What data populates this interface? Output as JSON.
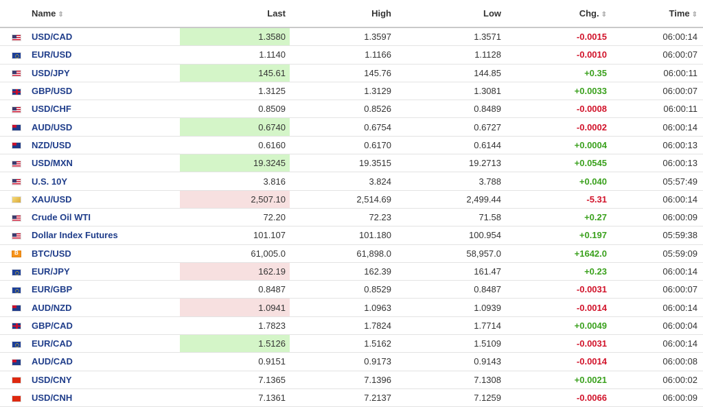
{
  "columns": {
    "name": "Name",
    "last": "Last",
    "high": "High",
    "low": "Low",
    "chg": "Chg.",
    "time": "Time"
  },
  "rows": [
    {
      "flag": "us-flag-icon",
      "flag_class": "f-us",
      "name": "USD/CAD",
      "last": "1.3580",
      "high": "1.3597",
      "low": "1.3571",
      "chg": "-0.0015",
      "time": "06:00:14",
      "highlight": "up",
      "dir": "neg"
    },
    {
      "flag": "eu-flag-icon",
      "flag_class": "f-eu",
      "name": "EUR/USD",
      "last": "1.1140",
      "high": "1.1166",
      "low": "1.1128",
      "chg": "-0.0010",
      "time": "06:00:07",
      "highlight": "",
      "dir": "neg"
    },
    {
      "flag": "us-flag-icon",
      "flag_class": "f-us",
      "name": "USD/JPY",
      "last": "145.61",
      "high": "145.76",
      "low": "144.85",
      "chg": "+0.35",
      "time": "06:00:11",
      "highlight": "up",
      "dir": "pos"
    },
    {
      "flag": "uk-flag-icon",
      "flag_class": "f-uk",
      "name": "GBP/USD",
      "last": "1.3125",
      "high": "1.3129",
      "low": "1.3081",
      "chg": "+0.0033",
      "time": "06:00:07",
      "highlight": "",
      "dir": "pos"
    },
    {
      "flag": "us-flag-icon",
      "flag_class": "f-us",
      "name": "USD/CHF",
      "last": "0.8509",
      "high": "0.8526",
      "low": "0.8489",
      "chg": "-0.0008",
      "time": "06:00:11",
      "highlight": "",
      "dir": "neg"
    },
    {
      "flag": "au-flag-icon",
      "flag_class": "f-au",
      "name": "AUD/USD",
      "last": "0.6740",
      "high": "0.6754",
      "low": "0.6727",
      "chg": "-0.0002",
      "time": "06:00:14",
      "highlight": "up",
      "dir": "neg"
    },
    {
      "flag": "nz-flag-icon",
      "flag_class": "f-nz",
      "name": "NZD/USD",
      "last": "0.6160",
      "high": "0.6170",
      "low": "0.6144",
      "chg": "+0.0004",
      "time": "06:00:13",
      "highlight": "",
      "dir": "pos"
    },
    {
      "flag": "us-flag-icon",
      "flag_class": "f-us",
      "name": "USD/MXN",
      "last": "19.3245",
      "high": "19.3515",
      "low": "19.2713",
      "chg": "+0.0545",
      "time": "06:00:13",
      "highlight": "up",
      "dir": "pos"
    },
    {
      "flag": "us-flag-icon",
      "flag_class": "f-us",
      "name": "U.S. 10Y",
      "last": "3.816",
      "high": "3.824",
      "low": "3.788",
      "chg": "+0.040",
      "time": "05:57:49",
      "highlight": "",
      "dir": "pos"
    },
    {
      "flag": "gold-icon",
      "flag_class": "f-gold",
      "name": "XAU/USD",
      "last": "2,507.10",
      "high": "2,514.69",
      "low": "2,499.44",
      "chg": "-5.31",
      "time": "06:00:14",
      "highlight": "down",
      "dir": "neg"
    },
    {
      "flag": "us-flag-icon",
      "flag_class": "f-us",
      "name": "Crude Oil WTI",
      "last": "72.20",
      "high": "72.23",
      "low": "71.58",
      "chg": "+0.27",
      "time": "06:00:09",
      "highlight": "",
      "dir": "pos"
    },
    {
      "flag": "us-flag-icon",
      "flag_class": "f-us",
      "name": "Dollar Index Futures",
      "last": "101.107",
      "high": "101.180",
      "low": "100.954",
      "chg": "+0.197",
      "time": "05:59:38",
      "highlight": "",
      "dir": "pos"
    },
    {
      "flag": "bitcoin-icon",
      "flag_class": "f-btc",
      "name": "BTC/USD",
      "last": "61,005.0",
      "high": "61,898.0",
      "low": "58,957.0",
      "chg": "+1642.0",
      "time": "05:59:09",
      "highlight": "",
      "dir": "pos"
    },
    {
      "flag": "eu-flag-icon",
      "flag_class": "f-eu",
      "name": "EUR/JPY",
      "last": "162.19",
      "high": "162.39",
      "low": "161.47",
      "chg": "+0.23",
      "time": "06:00:14",
      "highlight": "down",
      "dir": "pos"
    },
    {
      "flag": "eu-flag-icon",
      "flag_class": "f-eu",
      "name": "EUR/GBP",
      "last": "0.8487",
      "high": "0.8529",
      "low": "0.8487",
      "chg": "-0.0031",
      "time": "06:00:07",
      "highlight": "",
      "dir": "neg"
    },
    {
      "flag": "au-flag-icon",
      "flag_class": "f-au",
      "name": "AUD/NZD",
      "last": "1.0941",
      "high": "1.0963",
      "low": "1.0939",
      "chg": "-0.0014",
      "time": "06:00:14",
      "highlight": "down",
      "dir": "neg"
    },
    {
      "flag": "uk-flag-icon",
      "flag_class": "f-uk",
      "name": "GBP/CAD",
      "last": "1.7823",
      "high": "1.7824",
      "low": "1.7714",
      "chg": "+0.0049",
      "time": "06:00:04",
      "highlight": "",
      "dir": "pos"
    },
    {
      "flag": "eu-flag-icon",
      "flag_class": "f-eu",
      "name": "EUR/CAD",
      "last": "1.5126",
      "high": "1.5162",
      "low": "1.5109",
      "chg": "-0.0031",
      "time": "06:00:14",
      "highlight": "up",
      "dir": "neg"
    },
    {
      "flag": "au-flag-icon",
      "flag_class": "f-au",
      "name": "AUD/CAD",
      "last": "0.9151",
      "high": "0.9173",
      "low": "0.9143",
      "chg": "-0.0014",
      "time": "06:00:08",
      "highlight": "",
      "dir": "neg"
    },
    {
      "flag": "cn-flag-icon",
      "flag_class": "f-cn",
      "name": "USD/CNY",
      "last": "7.1365",
      "high": "7.1396",
      "low": "7.1308",
      "chg": "+0.0021",
      "time": "06:00:02",
      "highlight": "",
      "dir": "pos"
    },
    {
      "flag": "cn-flag-icon",
      "flag_class": "f-cn",
      "name": "USD/CNH",
      "last": "7.1361",
      "high": "7.2137",
      "low": "7.1259",
      "chg": "-0.0066",
      "time": "06:00:09",
      "highlight": "",
      "dir": "neg"
    }
  ],
  "colors": {
    "positive": "#3ba11e",
    "negative": "#d1132a",
    "link": "#1f3d8a",
    "highlight_up": "#d4f5c8",
    "highlight_down": "#f7e0e0"
  }
}
